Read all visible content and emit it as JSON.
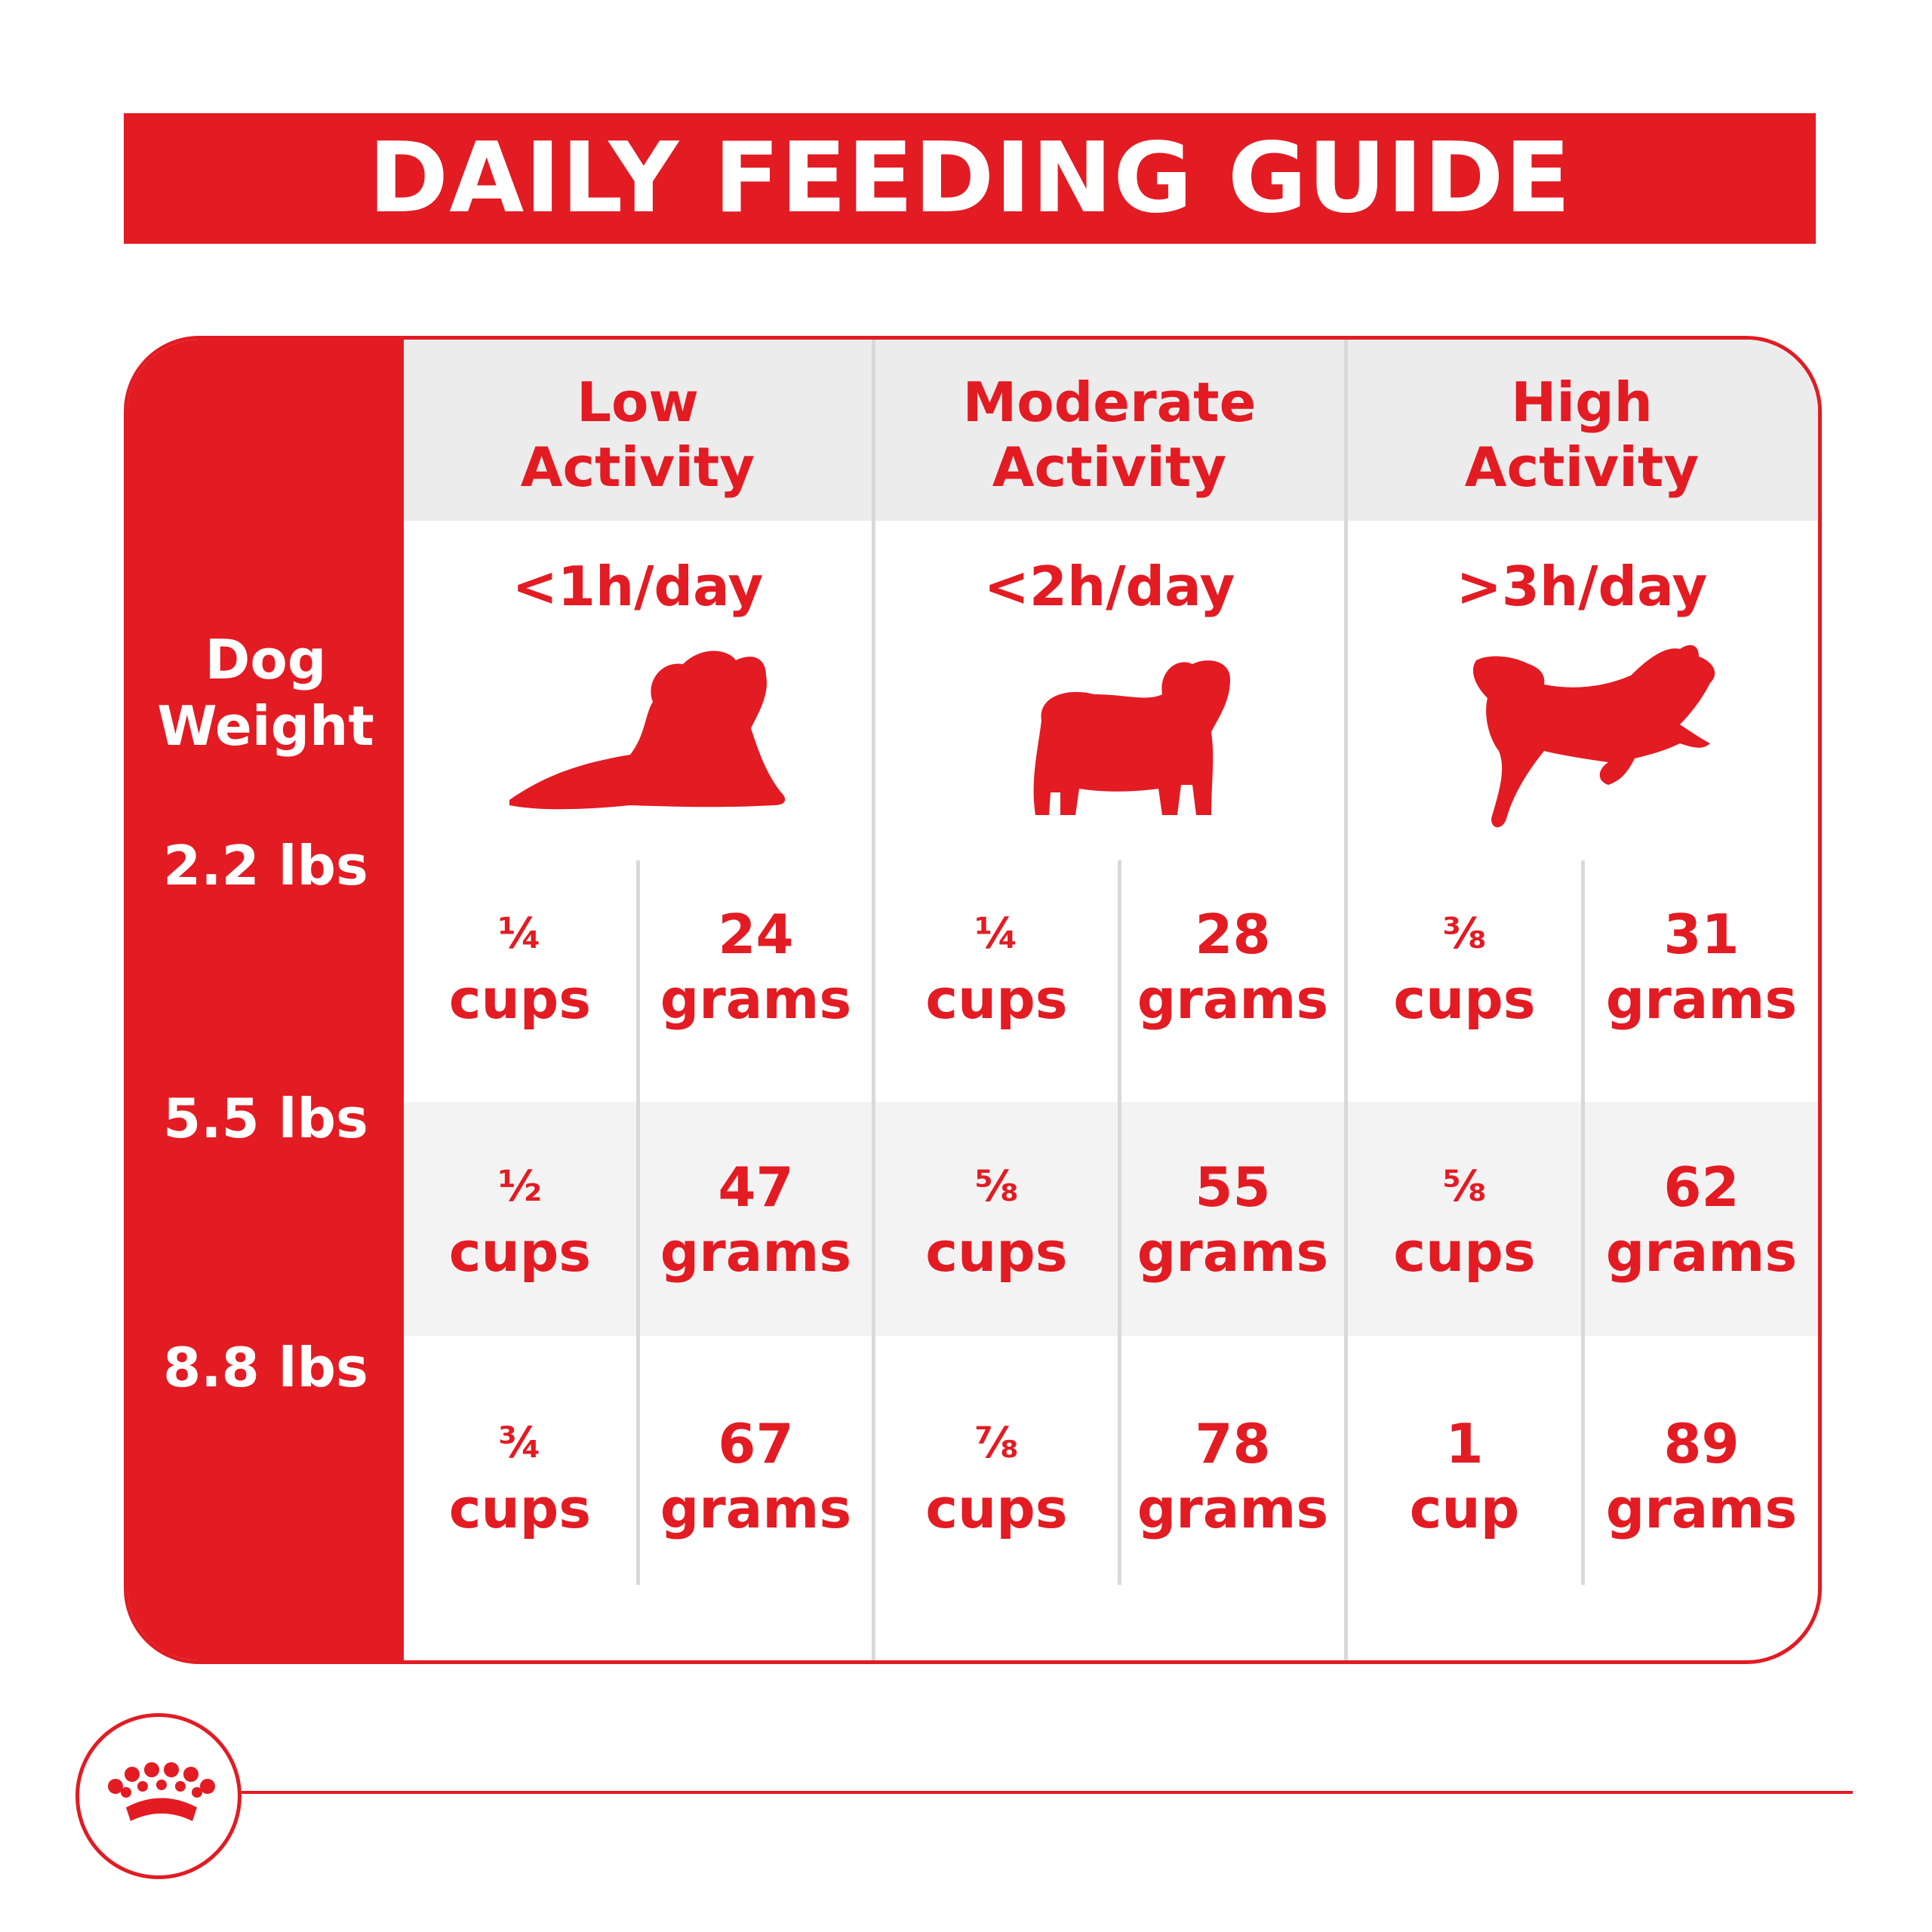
{
  "title": "DAILY FEEDING GUIDE",
  "weight_header": [
    "Dog",
    "Weight"
  ],
  "weights": [
    "2.2 lbs",
    "5.5 lbs",
    "8.8 lbs"
  ],
  "activities": [
    {
      "name_line1": "Low",
      "name_line2": "Activity",
      "time": "<1h/day",
      "icon": "lying-dog-icon"
    },
    {
      "name_line1": "Moderate",
      "name_line2": "Activity",
      "time": "<2h/day",
      "icon": "standing-dog-icon"
    },
    {
      "name_line1": "High",
      "name_line2": "Activity",
      "time": ">3h/day",
      "icon": "running-dog-icon"
    }
  ],
  "rows": [
    [
      {
        "cups_amount": "¼",
        "cups_unit": "cups",
        "grams_amount": "24",
        "grams_unit": "grams"
      },
      {
        "cups_amount": "¼",
        "cups_unit": "cups",
        "grams_amount": "28",
        "grams_unit": "grams"
      },
      {
        "cups_amount": "⅜",
        "cups_unit": "cups",
        "grams_amount": "31",
        "grams_unit": "grams"
      }
    ],
    [
      {
        "cups_amount": "½",
        "cups_unit": "cups",
        "grams_amount": "47",
        "grams_unit": "grams"
      },
      {
        "cups_amount": "⅝",
        "cups_unit": "cups",
        "grams_amount": "55",
        "grams_unit": "grams"
      },
      {
        "cups_amount": "⅝",
        "cups_unit": "cups",
        "grams_amount": "62",
        "grams_unit": "grams"
      }
    ],
    [
      {
        "cups_amount": "¾",
        "cups_unit": "cups",
        "grams_amount": "67",
        "grams_unit": "grams"
      },
      {
        "cups_amount": "⅞",
        "cups_unit": "cups",
        "grams_amount": "78",
        "grams_unit": "grams"
      },
      {
        "cups_amount": "1",
        "cups_unit": "cup",
        "grams_amount": "89",
        "grams_unit": "grams"
      }
    ]
  ],
  "colors": {
    "brand_red": "#e31b23",
    "header_gray": "#ececec",
    "band_gray": "#f3f3f3"
  },
  "logo": "royal-canin-crown-logo"
}
